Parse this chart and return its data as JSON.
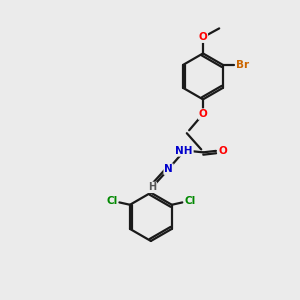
{
  "background_color": "#ebebeb",
  "bond_color": "#1a1a1a",
  "atom_colors": {
    "O": "#ff0000",
    "N": "#0000cc",
    "Br": "#cc6600",
    "Cl": "#008800",
    "C": "#1a1a1a",
    "H": "#555555"
  },
  "figsize": [
    3.0,
    3.0
  ],
  "dpi": 100,
  "lw": 1.6,
  "sep": 0.08
}
